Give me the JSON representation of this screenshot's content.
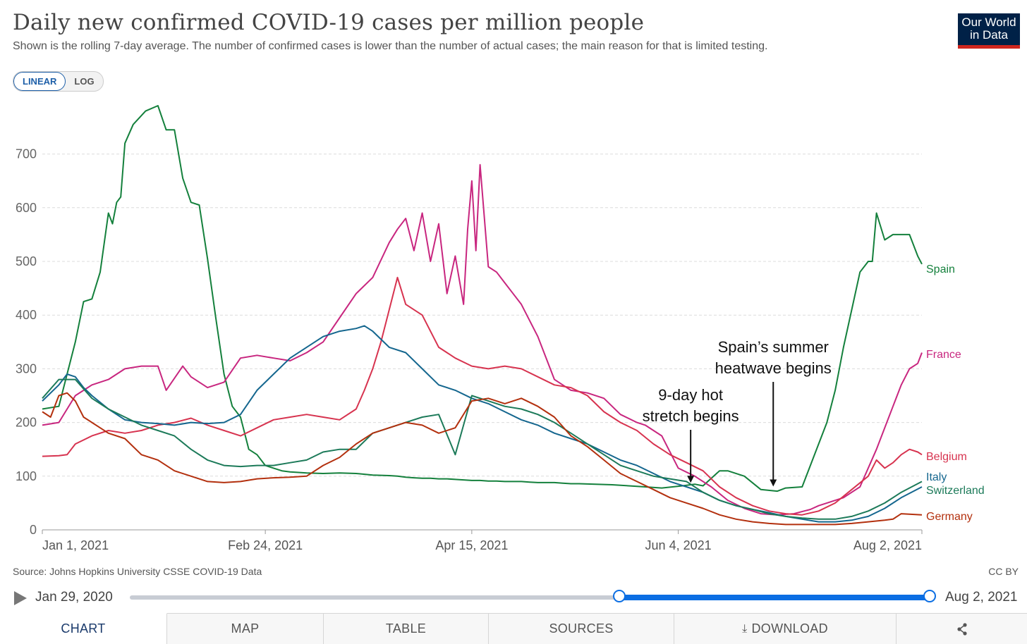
{
  "header": {
    "title": "Daily new confirmed COVID-19 cases per million people",
    "subtitle": "Shown is the rolling 7-day average. The number of confirmed cases is lower than the number of actual cases; the main reason for that is limited testing.",
    "logo_line1": "Our World",
    "logo_line2": "in Data"
  },
  "scale": {
    "linear": "LINEAR",
    "log": "LOG",
    "selected": "LINEAR"
  },
  "colors": {
    "Spain": "#14803c",
    "France": "#c8267f",
    "Belgium": "#d7334f",
    "Italy": "#14668e",
    "Switzerland": "#1c7a59",
    "Germany": "#b3300e"
  },
  "chart_data": {
    "type": "line",
    "title": "Daily new confirmed COVID-19 cases per million people",
    "xlabel": "",
    "ylabel": "",
    "ylim": [
      0,
      790
    ],
    "y_ticks": [
      0,
      100,
      200,
      300,
      400,
      500,
      600,
      700
    ],
    "x_ticks": [
      "Jan 1, 2021",
      "Feb 24, 2021",
      "Apr 15, 2021",
      "Jun 4, 2021",
      "Aug 2, 2021"
    ],
    "x_tick_days": [
      0,
      54,
      104,
      154,
      213
    ],
    "x_range_days": [
      0,
      213
    ],
    "x_unit": "days since Jan 1, 2021",
    "grid": "horizontal dashed",
    "series": [
      {
        "name": "Spain",
        "x": [
          0,
          4,
          8,
          10,
          12,
          14,
          16,
          17,
          18,
          19,
          20,
          22,
          25,
          28,
          30,
          32,
          34,
          36,
          38,
          40,
          42,
          44,
          46,
          48,
          50,
          52,
          54,
          56,
          58,
          60,
          64,
          68,
          72,
          76,
          80,
          84,
          86,
          88,
          90,
          92,
          94,
          96,
          98,
          100,
          102,
          104,
          106,
          108,
          110,
          112,
          114,
          116,
          118,
          120,
          122,
          124,
          126,
          128,
          130,
          134,
          138,
          142,
          146,
          150,
          155,
          158,
          160,
          164,
          166,
          170,
          174,
          178,
          180,
          184,
          188,
          190,
          192,
          194,
          196,
          198,
          200,
          201,
          202,
          204,
          206,
          208,
          210,
          212,
          213
        ],
        "values": [
          225,
          230,
          350,
          425,
          430,
          480,
          590,
          570,
          610,
          620,
          720,
          755,
          780,
          790,
          745,
          745,
          655,
          610,
          605,
          505,
          395,
          290,
          230,
          210,
          150,
          140,
          120,
          115,
          110,
          108,
          106,
          105,
          106,
          105,
          102,
          101,
          100,
          98,
          97,
          96,
          96,
          95,
          95,
          94,
          93,
          92,
          92,
          91,
          91,
          90,
          90,
          90,
          89,
          88,
          88,
          88,
          87,
          86,
          86,
          85,
          84,
          82,
          80,
          78,
          82,
          85,
          82,
          110,
          110,
          100,
          75,
          72,
          78,
          80,
          160,
          200,
          260,
          340,
          410,
          480,
          500,
          500,
          590,
          540,
          550,
          550,
          550,
          510,
          495
        ]
      },
      {
        "name": "France",
        "x": [
          0,
          4,
          8,
          12,
          16,
          20,
          24,
          28,
          30,
          34,
          36,
          40,
          44,
          48,
          52,
          56,
          60,
          64,
          68,
          72,
          76,
          80,
          84,
          86,
          88,
          90,
          92,
          94,
          96,
          98,
          100,
          102,
          103,
          104,
          105,
          106,
          108,
          110,
          112,
          114,
          116,
          120,
          124,
          128,
          132,
          136,
          140,
          144,
          146,
          150,
          154,
          158,
          162,
          166,
          170,
          174,
          178,
          182,
          186,
          188,
          190,
          194,
          198,
          202,
          206,
          208,
          210,
          212,
          213
        ],
        "values": [
          195,
          200,
          250,
          270,
          280,
          300,
          305,
          305,
          260,
          305,
          285,
          265,
          275,
          320,
          325,
          320,
          315,
          330,
          350,
          395,
          440,
          470,
          535,
          560,
          580,
          520,
          590,
          500,
          570,
          440,
          510,
          420,
          560,
          650,
          520,
          680,
          490,
          480,
          460,
          440,
          420,
          360,
          280,
          260,
          255,
          245,
          215,
          200,
          195,
          175,
          115,
          100,
          80,
          55,
          40,
          30,
          28,
          30,
          38,
          45,
          50,
          60,
          80,
          150,
          230,
          270,
          300,
          310,
          330
        ]
      },
      {
        "name": "Belgium",
        "x": [
          0,
          4,
          6,
          8,
          12,
          16,
          20,
          24,
          28,
          32,
          36,
          40,
          44,
          48,
          52,
          56,
          60,
          64,
          68,
          72,
          76,
          78,
          80,
          82,
          84,
          86,
          88,
          92,
          96,
          98,
          100,
          104,
          108,
          112,
          116,
          120,
          124,
          128,
          132,
          136,
          140,
          144,
          148,
          152,
          156,
          160,
          164,
          168,
          172,
          176,
          180,
          184,
          188,
          192,
          196,
          200,
          202,
          204,
          206,
          208,
          210,
          212,
          213
        ],
        "values": [
          137,
          138,
          140,
          160,
          175,
          185,
          180,
          185,
          195,
          200,
          208,
          195,
          185,
          175,
          190,
          205,
          210,
          215,
          210,
          205,
          225,
          260,
          300,
          350,
          410,
          470,
          420,
          400,
          340,
          330,
          320,
          305,
          300,
          305,
          300,
          285,
          270,
          265,
          250,
          220,
          200,
          185,
          160,
          140,
          125,
          110,
          80,
          60,
          45,
          35,
          30,
          28,
          35,
          50,
          75,
          100,
          130,
          115,
          125,
          140,
          150,
          145,
          140
        ]
      },
      {
        "name": "Italy",
        "x": [
          0,
          4,
          6,
          8,
          10,
          12,
          16,
          20,
          24,
          28,
          32,
          36,
          40,
          44,
          48,
          52,
          56,
          60,
          64,
          68,
          72,
          76,
          78,
          80,
          84,
          88,
          92,
          96,
          100,
          104,
          108,
          112,
          116,
          120,
          124,
          128,
          132,
          136,
          140,
          144,
          148,
          152,
          156,
          160,
          164,
          168,
          172,
          176,
          180,
          184,
          188,
          192,
          196,
          200,
          204,
          208,
          213
        ],
        "values": [
          240,
          270,
          290,
          285,
          265,
          250,
          225,
          205,
          200,
          198,
          195,
          200,
          198,
          200,
          215,
          260,
          290,
          320,
          340,
          360,
          370,
          375,
          380,
          370,
          340,
          330,
          300,
          270,
          260,
          245,
          235,
          220,
          205,
          195,
          180,
          170,
          160,
          145,
          130,
          120,
          105,
          90,
          80,
          70,
          55,
          45,
          38,
          32,
          25,
          20,
          15,
          15,
          18,
          25,
          40,
          60,
          80
        ]
      },
      {
        "name": "Switzerland",
        "x": [
          0,
          4,
          8,
          12,
          16,
          20,
          24,
          28,
          32,
          36,
          40,
          44,
          48,
          52,
          56,
          60,
          64,
          68,
          72,
          76,
          80,
          84,
          88,
          92,
          96,
          100,
          104,
          108,
          112,
          116,
          120,
          124,
          128,
          132,
          136,
          140,
          144,
          148,
          152,
          156,
          160,
          164,
          168,
          172,
          176,
          180,
          184,
          188,
          192,
          196,
          200,
          204,
          208,
          213
        ],
        "values": [
          245,
          280,
          280,
          245,
          225,
          210,
          195,
          185,
          175,
          150,
          130,
          120,
          118,
          120,
          120,
          125,
          130,
          145,
          150,
          150,
          180,
          190,
          200,
          210,
          215,
          140,
          250,
          240,
          230,
          225,
          215,
          200,
          180,
          160,
          140,
          120,
          110,
          100,
          95,
          90,
          70,
          55,
          45,
          38,
          30,
          25,
          22,
          20,
          20,
          25,
          35,
          50,
          70,
          90
        ]
      },
      {
        "name": "Germany",
        "x": [
          0,
          2,
          4,
          6,
          8,
          10,
          12,
          14,
          16,
          20,
          24,
          28,
          30,
          32,
          36,
          40,
          44,
          48,
          52,
          56,
          60,
          64,
          68,
          72,
          76,
          80,
          84,
          88,
          92,
          96,
          100,
          104,
          108,
          112,
          116,
          120,
          124,
          128,
          132,
          136,
          140,
          144,
          148,
          152,
          156,
          160,
          164,
          168,
          172,
          176,
          180,
          184,
          188,
          192,
          196,
          200,
          204,
          206,
          208,
          213
        ],
        "values": [
          220,
          210,
          250,
          255,
          240,
          210,
          200,
          190,
          180,
          170,
          140,
          130,
          120,
          110,
          100,
          90,
          88,
          90,
          95,
          97,
          98,
          100,
          120,
          135,
          160,
          180,
          190,
          200,
          195,
          180,
          190,
          240,
          245,
          235,
          245,
          230,
          210,
          175,
          155,
          130,
          105,
          90,
          75,
          60,
          50,
          40,
          28,
          20,
          15,
          12,
          10,
          10,
          10,
          10,
          12,
          15,
          18,
          20,
          30,
          28
        ]
      }
    ],
    "series_labels": [
      "Spain",
      "France",
      "Belgium",
      "Italy",
      "Switzerland",
      "Germany"
    ],
    "annotations": [
      {
        "text_line1": "9-day hot",
        "text_line2": "stretch begins",
        "x": 157,
        "y": 85
      },
      {
        "text_line1": "Spain’s summer",
        "text_line2": "heatwave begins",
        "x": 177,
        "y": 78
      }
    ]
  },
  "footer": {
    "source": "Source: Johns Hopkins University CSSE COVID-19 Data",
    "license": "CC BY"
  },
  "timeline": {
    "start_label": "Jan 29, 2020",
    "end_label": "Aug 2, 2021"
  },
  "tabs": {
    "chart": "CHART",
    "map": "MAP",
    "table": "TABLE",
    "sources": "SOURCES",
    "download": "DOWNLOAD"
  }
}
